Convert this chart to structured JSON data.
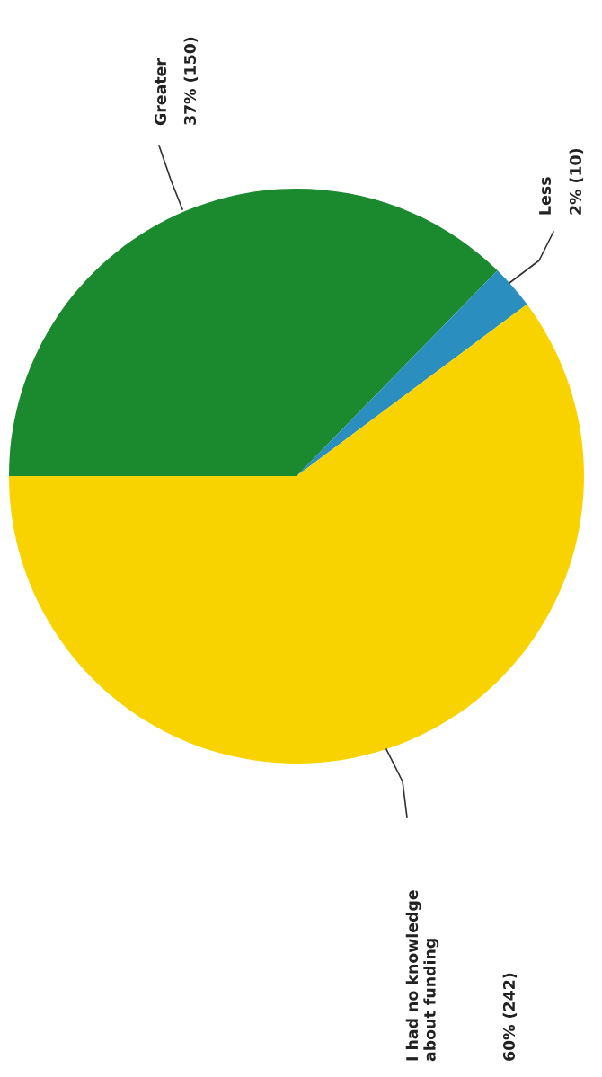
{
  "chart_data": {
    "type": "pie",
    "categories": [
      "Greater",
      "Less",
      "I had no knowledge\nabout funding"
    ],
    "values": [
      150,
      10,
      242
    ],
    "colors": [
      "#1b8a2f",
      "#2a8fbf",
      "#f8d300"
    ],
    "value_labels": [
      "37% (150)",
      "2% (10)",
      "60% (242)"
    ]
  }
}
